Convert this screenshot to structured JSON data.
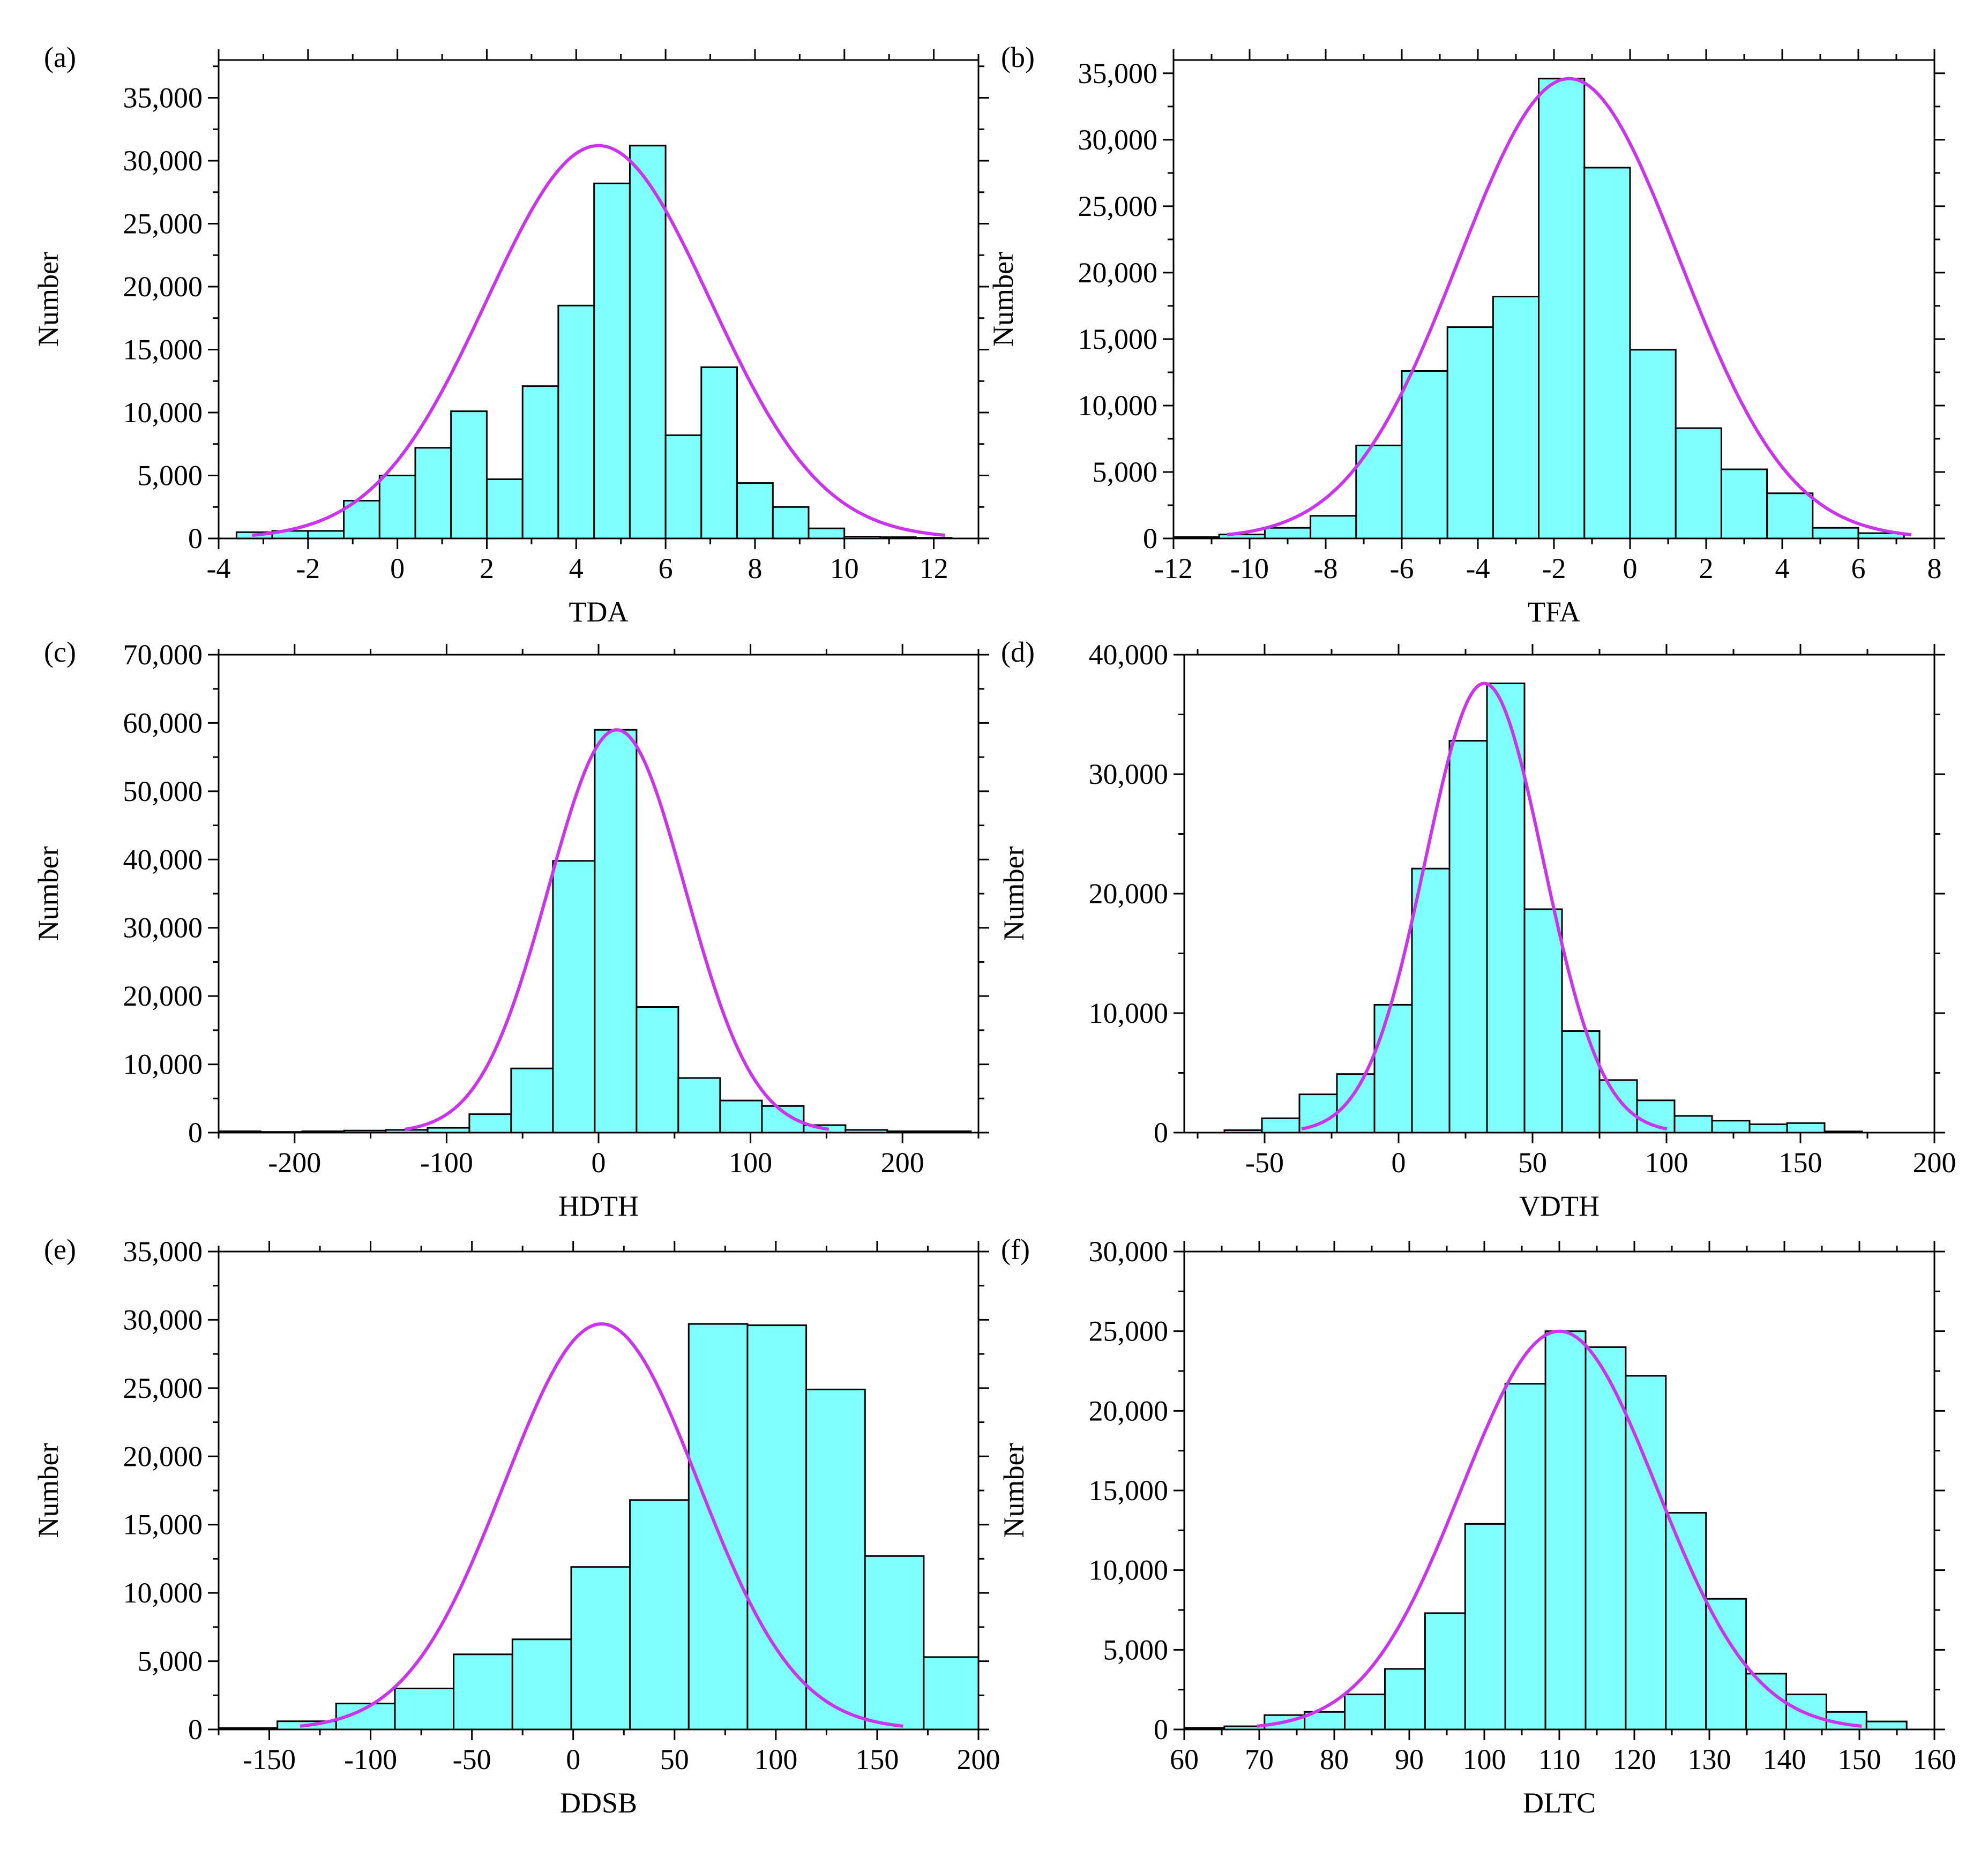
{
  "colors": {
    "bar_fill": "#80FFFF",
    "bar_stroke": "#000000",
    "fit_curve": "#CC33EE",
    "axis": "#000000"
  },
  "chart_data": [
    {
      "panel": "(a)",
      "type": "bar",
      "title": "",
      "xlabel": "TDA",
      "ylabel": "Number",
      "xlim": [
        -4,
        13
      ],
      "ylim": [
        0,
        38000
      ],
      "xticks": [
        -4,
        -2,
        0,
        2,
        4,
        6,
        8,
        10,
        12
      ],
      "xtick_labels": [
        "-4",
        "-2",
        "0",
        "2",
        "4",
        "6",
        "8",
        "10",
        "12"
      ],
      "yticks": [
        0,
        5000,
        10000,
        15000,
        20000,
        25000,
        30000,
        35000
      ],
      "ytick_labels": [
        "0",
        "5,000",
        "10,000",
        "15,000",
        "20,000",
        "25,000",
        "30,000",
        "35,000"
      ],
      "bin_width": 0.8,
      "bins_start": [
        -3.6,
        -2.8,
        -2.0,
        -1.2,
        -0.4,
        0.4,
        1.2,
        2.0,
        2.8,
        3.6,
        4.4,
        5.2,
        6.0,
        6.8,
        7.6,
        8.4,
        9.2,
        10.0,
        10.8,
        11.6
      ],
      "values": [
        500,
        600,
        600,
        3000,
        5000,
        7200,
        10100,
        4700,
        12100,
        18500,
        28200,
        31200,
        8200,
        13600,
        4400,
        2500,
        800,
        150,
        100,
        50
      ],
      "fit": {
        "kind": "gaussian",
        "mean": 4.5,
        "sd": 2.5,
        "peak": 31200
      }
    },
    {
      "panel": "(b)",
      "type": "bar",
      "title": "",
      "xlabel": "TFA",
      "ylabel": "Number",
      "xlim": [
        -12,
        8
      ],
      "ylim": [
        0,
        36000
      ],
      "xticks": [
        -12,
        -10,
        -8,
        -6,
        -4,
        -2,
        0,
        2,
        4,
        6,
        8
      ],
      "xtick_labels": [
        "-12",
        "-10",
        "-8",
        "-6",
        "-4",
        "-2",
        "0",
        "2",
        "4",
        "6",
        "8"
      ],
      "yticks": [
        0,
        5000,
        10000,
        15000,
        20000,
        25000,
        30000,
        35000
      ],
      "ytick_labels": [
        "0",
        "5,000",
        "10,000",
        "15,000",
        "20,000",
        "25,000",
        "30,000",
        "35,000"
      ],
      "bin_width": 1.2,
      "bins_start": [
        -12.0,
        -10.8,
        -9.6,
        -8.4,
        -7.2,
        -6.0,
        -4.8,
        -3.6,
        -2.4,
        -1.2,
        0.0,
        1.2,
        2.4,
        3.6,
        4.8,
        6.0
      ],
      "values": [
        100,
        300,
        800,
        1700,
        7000,
        12600,
        15900,
        18200,
        34600,
        27900,
        14200,
        8300,
        5200,
        3400,
        800,
        400
      ],
      "fit": {
        "kind": "gaussian",
        "mean": -1.6,
        "sd": 2.9,
        "peak": 34600
      }
    },
    {
      "panel": "(c)",
      "type": "bar",
      "title": "",
      "xlabel": "HDTH",
      "ylabel": "Number",
      "xlim": [
        -250,
        250
      ],
      "ylim": [
        0,
        70000
      ],
      "xticks": [
        -200,
        -100,
        0,
        100,
        200
      ],
      "xtick_labels": [
        "-200",
        "-100",
        "0",
        "100",
        "200"
      ],
      "yticks": [
        0,
        10000,
        20000,
        30000,
        40000,
        50000,
        60000,
        70000
      ],
      "ytick_labels": [
        "0",
        "10,000",
        "20,000",
        "30,000",
        "40,000",
        "50,000",
        "60,000",
        "70,000"
      ],
      "bin_width": 27.5,
      "bins_start": [
        -250,
        -222.5,
        -195,
        -167.5,
        -140,
        -112.5,
        -85,
        -57.5,
        -30,
        -2.5,
        25,
        52.5,
        80,
        107.5,
        135,
        162.5,
        190,
        217.5
      ],
      "values": [
        200,
        100,
        200,
        300,
        400,
        700,
        2700,
        9400,
        39800,
        59000,
        18400,
        8000,
        4700,
        3900,
        1100,
        400,
        200,
        200
      ],
      "fit": {
        "kind": "gaussian",
        "mean": 12,
        "sd": 45,
        "peak": 59000
      }
    },
    {
      "panel": "(d)",
      "type": "bar",
      "title": "",
      "xlabel": "VDTH",
      "ylabel": "Number",
      "xlim": [
        -80,
        200
      ],
      "ylim": [
        0,
        40000
      ],
      "xticks": [
        -50,
        0,
        50,
        100,
        150,
        200
      ],
      "xtick_labels": [
        "-50",
        "0",
        "50",
        "100",
        "150",
        "200"
      ],
      "yticks": [
        0,
        10000,
        20000,
        30000,
        40000
      ],
      "ytick_labels": [
        "0",
        "10,000",
        "20,000",
        "30,000",
        "40,000"
      ],
      "bin_width": 14,
      "bins_start": [
        -65,
        -51,
        -37,
        -23,
        -9,
        5,
        19,
        33,
        47,
        61,
        75,
        89,
        103,
        117,
        131,
        145,
        159
      ],
      "values": [
        200,
        1200,
        3200,
        4900,
        10700,
        22100,
        32800,
        37600,
        18700,
        8500,
        4400,
        2700,
        1400,
        1000,
        700,
        800,
        100
      ],
      "fit": {
        "kind": "gaussian",
        "mean": 32,
        "sd": 22,
        "peak": 37600
      }
    },
    {
      "panel": "(e)",
      "type": "bar",
      "title": "",
      "xlabel": "DDSB",
      "ylabel": "Number",
      "xlim": [
        -175,
        200
      ],
      "ylim": [
        0,
        35000
      ],
      "xticks": [
        -150,
        -100,
        -50,
        0,
        50,
        100,
        150,
        200
      ],
      "xtick_labels": [
        "-150",
        "-100",
        "-50",
        "0",
        "50",
        "100",
        "150",
        "200"
      ],
      "yticks": [
        0,
        5000,
        10000,
        15000,
        20000,
        25000,
        30000,
        35000
      ],
      "ytick_labels": [
        "0",
        "5,000",
        "10,000",
        "15,000",
        "20,000",
        "25,000",
        "30,000",
        "35,000"
      ],
      "bin_width": 29,
      "bins_start": [
        -175,
        -146,
        -117,
        -88,
        -59,
        -30,
        -1,
        28,
        57,
        86,
        115,
        144,
        173
      ],
      "values": [
        100,
        600,
        1900,
        3000,
        5500,
        6600,
        11900,
        16800,
        29700,
        29600,
        24900,
        12700,
        5300
      ],
      "fit": {
        "kind": "gaussian",
        "mean": 14,
        "sd": 48,
        "peak": 29700
      }
    },
    {
      "panel": "(f)",
      "type": "bar",
      "title": "",
      "xlabel": "DLTC",
      "ylabel": "Number",
      "xlim": [
        60,
        160
      ],
      "ylim": [
        0,
        30000
      ],
      "xticks": [
        60,
        70,
        80,
        90,
        100,
        110,
        120,
        130,
        140,
        150,
        160
      ],
      "xtick_labels": [
        "60",
        "70",
        "80",
        "90",
        "100",
        "110",
        "120",
        "130",
        "140",
        "150",
        "160"
      ],
      "yticks": [
        0,
        5000,
        10000,
        15000,
        20000,
        25000,
        30000
      ],
      "ytick_labels": [
        "0",
        "5,000",
        "10,000",
        "15,000",
        "20,000",
        "25,000",
        "30,000"
      ],
      "bin_width": 5.35,
      "bins_start": [
        60,
        65.35,
        70.7,
        76.05,
        81.4,
        86.75,
        92.1,
        97.45,
        102.8,
        108.15,
        113.5,
        118.85,
        124.2,
        129.55,
        134.9,
        140.25,
        145.6,
        150.95
      ],
      "values": [
        100,
        200,
        900,
        1100,
        2200,
        3800,
        7300,
        12900,
        21700,
        25000,
        24000,
        22200,
        13600,
        8200,
        3500,
        2200,
        1100,
        500
      ],
      "fit": {
        "kind": "gaussian",
        "mean": 110,
        "sd": 13,
        "peak": 25000
      }
    }
  ]
}
